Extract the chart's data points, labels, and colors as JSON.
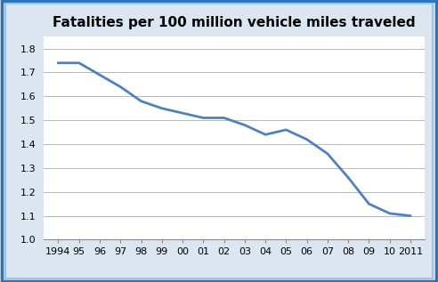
{
  "title": "Fatalities per 100 million vehicle miles traveled",
  "x_labels": [
    "1994",
    "95",
    "96",
    "97",
    "98",
    "99",
    "00",
    "01",
    "02",
    "03",
    "04",
    "05",
    "06",
    "07",
    "08",
    "09",
    "10",
    "2011"
  ],
  "x_values": [
    1994,
    1995,
    1996,
    1997,
    1998,
    1999,
    2000,
    2001,
    2002,
    2003,
    2004,
    2005,
    2006,
    2007,
    2008,
    2009,
    2010,
    2011
  ],
  "y_values": [
    1.74,
    1.74,
    1.69,
    1.64,
    1.58,
    1.55,
    1.53,
    1.51,
    1.51,
    1.48,
    1.44,
    1.46,
    1.42,
    1.36,
    1.26,
    1.15,
    1.11,
    1.1
  ],
  "ylim": [
    1.0,
    1.85
  ],
  "yticks": [
    1.0,
    1.1,
    1.2,
    1.3,
    1.4,
    1.5,
    1.6,
    1.7,
    1.8
  ],
  "line_color": "#4f81bd",
  "line_width": 2.0,
  "background_color": "#dce6f1",
  "plot_bg_color": "#ffffff",
  "outer_border_color_dark": "#2e75b6",
  "outer_border_color_light": "#9dc3e6",
  "grid_color": "#b8b8b8",
  "title_fontsize": 11,
  "tick_fontsize": 8
}
